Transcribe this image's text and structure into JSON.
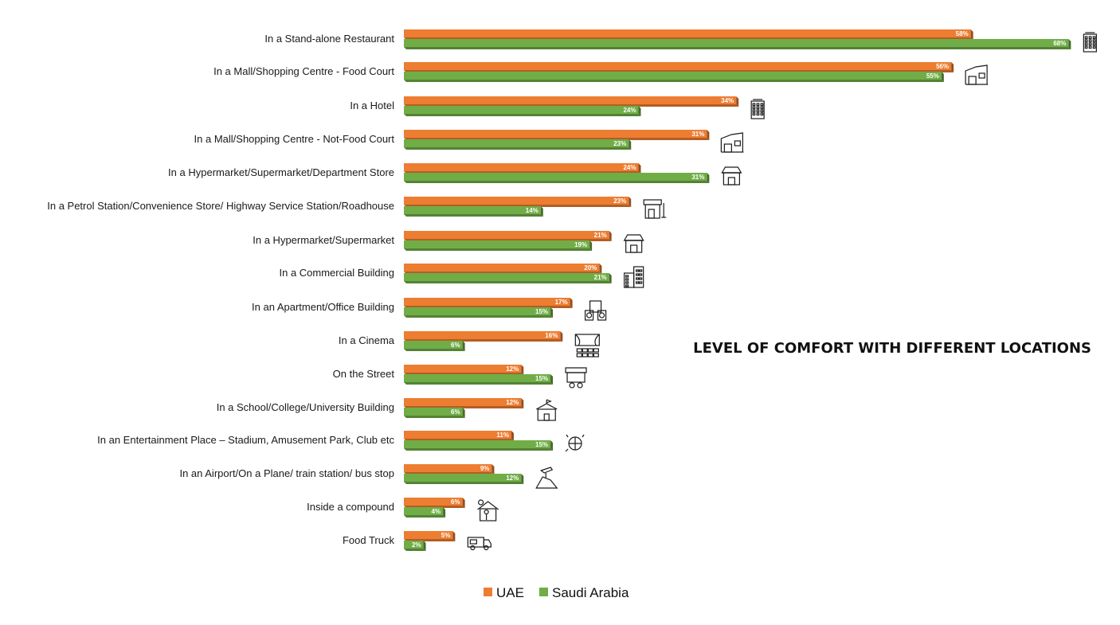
{
  "chart_data": {
    "type": "bar",
    "orientation": "horizontal",
    "title": "LEVEL OF COMFORT WITH DIFFERENT LOCATIONS",
    "xlabel": "",
    "ylabel": "",
    "xlim": [
      0,
      72
    ],
    "grid": false,
    "legend_position": "bottom",
    "categories": [
      "In a Stand-alone Restaurant",
      "In a Mall/Shopping Centre - Food Court",
      "In a Hotel",
      "In a Mall/Shopping Centre - Not-Food Court",
      "In a Hypermarket/Supermarket/Department Store",
      "In a Petrol Station/Convenience Store/ Highway Service Station/Roadhouse",
      "In a Hypermarket/Supermarket",
      "In a Commercial Building",
      "In an Apartment/Office Building",
      "In a Cinema",
      "On the Street",
      "In a School/College/University Building",
      "In an Entertainment Place – Stadium, Amusement Park, Club etc",
      "In an Airport/On a Plane/ train station/ bus stop",
      "Inside a compound",
      "Food Truck"
    ],
    "category_icons": [
      "hotel-building-icon",
      "mall-icon",
      "hotel-icon",
      "mall-icon",
      "store-icon",
      "petrol-station-icon",
      "store-icon",
      "office-buildings-icon",
      "apartment-icon",
      "cinema-icon",
      "street-stall-icon",
      "school-icon",
      "entertainment-icon",
      "airport-icon",
      "house-icon",
      "food-truck-icon"
    ],
    "series": [
      {
        "name": "UAE",
        "color": "#ed7d31",
        "values": [
          58,
          56,
          34,
          31,
          24,
          23,
          21,
          20,
          17,
          16,
          12,
          12,
          11,
          9,
          6,
          5
        ],
        "labels": [
          "58%",
          "56%",
          "34%",
          "31%",
          "24%",
          "23%",
          "21%",
          "20%",
          "17%",
          "16%",
          "12%",
          "12%",
          "11%",
          "9%",
          "6%",
          "5%"
        ]
      },
      {
        "name": "Saudi Arabia",
        "color": "#70ad47",
        "values": [
          68,
          55,
          24,
          23,
          31,
          14,
          19,
          21,
          15,
          6,
          15,
          6,
          15,
          12,
          4,
          2
        ],
        "labels": [
          "68%",
          "55%",
          "24%",
          "23%",
          "31%",
          "14%",
          "19%",
          "21%",
          "15%",
          "6%",
          "15%",
          "6%",
          "15%",
          "12%",
          "4%",
          "2%"
        ]
      }
    ]
  }
}
